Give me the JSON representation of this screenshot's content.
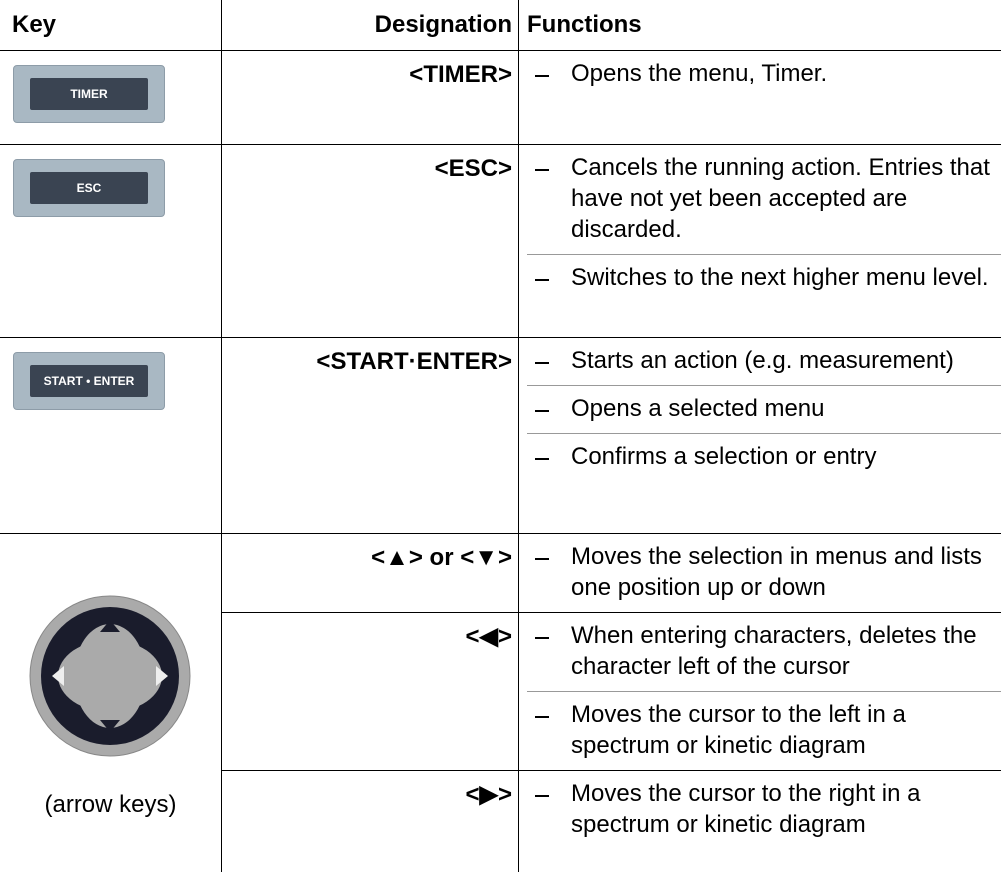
{
  "header": {
    "key": "Key",
    "designation": "Designation",
    "functions": "Functions"
  },
  "rows": [
    {
      "key": "TIMER",
      "designation": "<TIMER>",
      "functions": [
        "Opens the menu, Timer."
      ]
    },
    {
      "key": "ESC",
      "designation": "<ESC>",
      "functions": [
        "Cancels the running action. Entries that have not yet been accepted are discarded.",
        "Switches to the next higher menu level."
      ]
    },
    {
      "key": "START • ENTER",
      "designation": "<START·ENTER>",
      "functions": [
        "Starts an action (e.g. measurement)",
        "Opens a selected menu",
        "Confirms a selection or entry"
      ]
    },
    {
      "key_caption": "(arrow keys)",
      "designation": "<▲> or <▼>",
      "functions": [
        "Moves the selection in menus and lists one position up or down"
      ]
    },
    {
      "designation": "<◀>",
      "functions": [
        "When entering characters, deletes the character left of the cursor",
        "Moves the cursor to the left in a spectrum or kinetic diagram"
      ]
    },
    {
      "designation": "<▶>",
      "functions": [
        "Moves the cursor to the right in a spectrum or kinetic diagram"
      ]
    }
  ]
}
